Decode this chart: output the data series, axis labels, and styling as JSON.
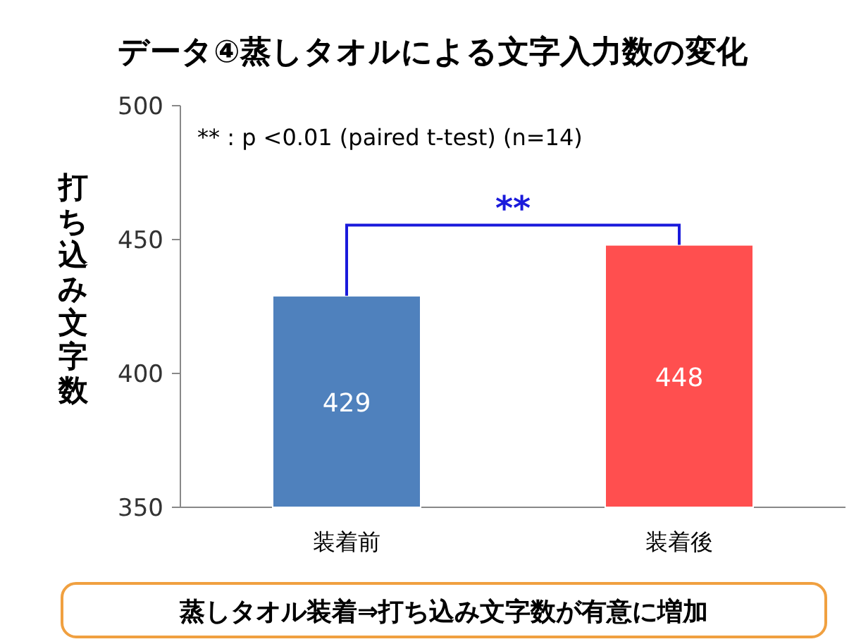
{
  "chart_data": {
    "type": "bar",
    "title": "データ④蒸しタオルによる文字入力数の変化",
    "ylabel": "打ち込み文字数",
    "categories": [
      "装着前",
      "装着後"
    ],
    "values": [
      429,
      448
    ],
    "colors": [
      "#4f81bd",
      "#ff4f4f"
    ],
    "ylim": [
      350,
      500
    ],
    "yticks": [
      350,
      400,
      450,
      500
    ],
    "data_labels": true,
    "annotations": [
      "** : p <0.01 (paired t-test) (n=14)",
      "**",
      "蒸しタオル装着⇒打ち込み文字数が有意に増加"
    ]
  }
}
